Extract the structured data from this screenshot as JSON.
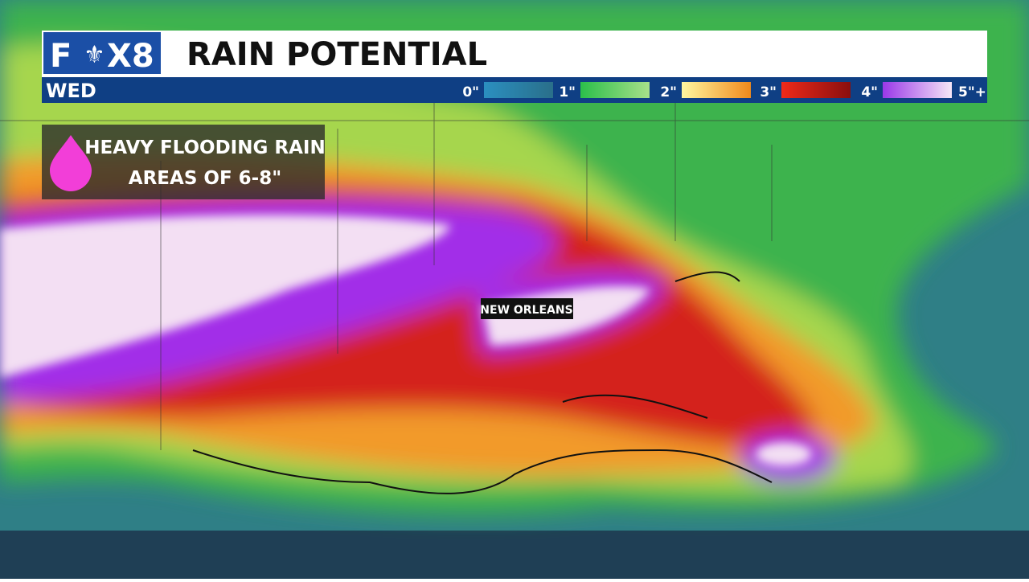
{
  "logo": {
    "parts": [
      "F",
      "X8"
    ]
  },
  "header": {
    "title": "RAIN POTENTIAL",
    "day": "WED"
  },
  "legend": {
    "labels": [
      "0\"",
      "1\"",
      "2\"",
      "3\"",
      "4\"",
      "5\"+"
    ]
  },
  "callout": {
    "lines": [
      "HEAVY FLOODING RAIN",
      "AREAS OF 6-8\""
    ]
  },
  "city": {
    "label": "NEW ORLEANS"
  }
}
